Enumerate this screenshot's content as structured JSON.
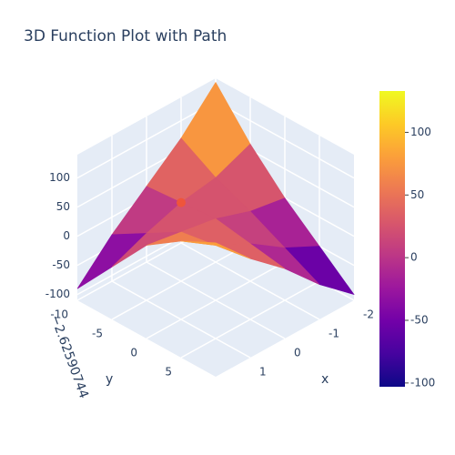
{
  "chart_data": {
    "type": "surface",
    "title": "3D Function Plot with Path",
    "x": [
      -2,
      -1,
      0,
      1,
      2
    ],
    "y": [
      -10,
      -5,
      0,
      5,
      10
    ],
    "z": [
      [
        133,
        60,
        0,
        -50,
        -100
      ],
      [
        70,
        35,
        10,
        -20,
        -50
      ],
      [
        20,
        25,
        30,
        20,
        10
      ],
      [
        -30,
        5,
        40,
        50,
        60
      ],
      [
        -90,
        -20,
        50,
        90,
        120
      ]
    ],
    "colorscale": [
      "#0d0887",
      "#46039f",
      "#7201a8",
      "#9c179e",
      "#bd3786",
      "#d8576b",
      "#ed7953",
      "#fb9f3a",
      "#fdca26",
      "#f0f921"
    ],
    "cmin": -103,
    "cmax": 133,
    "colorbar_ticks": [
      100,
      50,
      0,
      -50,
      -100
    ],
    "path": {
      "x": [
        0
      ],
      "y": [
        -5
      ],
      "z": [
        25
      ],
      "color": "#ef553b"
    },
    "xlim": [
      -2,
      2
    ],
    "ylim": [
      -10,
      10
    ],
    "zlim": [
      -110,
      140
    ],
    "xticks": [
      -2,
      -1,
      0,
      1
    ],
    "yticks": [
      -10,
      -5,
      0,
      5
    ],
    "zticks": [
      -100,
      -50,
      0,
      50,
      100
    ],
    "xlabel": "x",
    "ylabel": "y",
    "zlabel": "−2.62590744",
    "grid": true
  }
}
